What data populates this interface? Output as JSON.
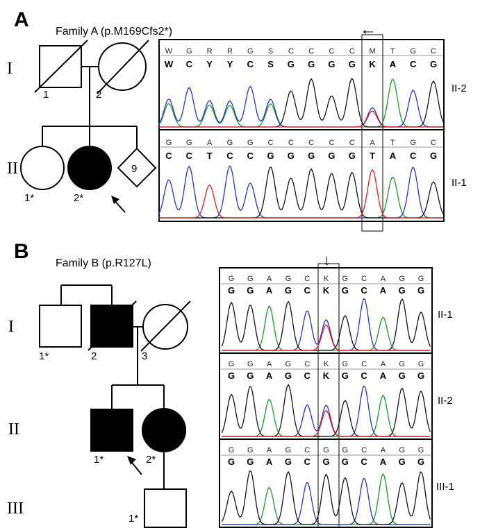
{
  "panels": {
    "A": {
      "letter": "A",
      "title": "Family A (p.M169Cfs2*)",
      "generations": [
        "I",
        "II"
      ],
      "individuals": {
        "I1": "1",
        "I2": "2",
        "II1": "1*",
        "II2": "2*",
        "diamond_count": "9"
      },
      "trace_labels": [
        "II-2",
        "II-1"
      ],
      "traces": [
        {
          "top": [
            "W",
            "G",
            "R",
            "R",
            "G",
            "S",
            "C",
            "C",
            "C",
            "C",
            "M",
            "T",
            "G",
            "C"
          ],
          "bottom": [
            "W",
            "C",
            "Y",
            "Y",
            "C",
            "S",
            "G",
            "G",
            "G",
            "G",
            "K",
            "A",
            "C",
            "G"
          ]
        },
        {
          "top": [
            "G",
            "G",
            "A",
            "G",
            "G",
            "C",
            "C",
            "C",
            "C",
            "C",
            "A",
            "T",
            "G",
            "C"
          ],
          "bottom": [
            "C",
            "C",
            "T",
            "C",
            "C",
            "G",
            "G",
            "G",
            "G",
            "G",
            "T",
            "A",
            "C",
            "G"
          ]
        }
      ],
      "arrow": "←"
    },
    "B": {
      "letter": "B",
      "title": "Family B (p.R127L)",
      "generations": [
        "I",
        "II",
        "III"
      ],
      "individuals": {
        "I1": "1*",
        "I2": "2",
        "I3": "3",
        "II1": "1*",
        "II2": "2*",
        "III1": "1*"
      },
      "trace_labels": [
        "II-1",
        "II-2",
        "III-1"
      ],
      "traces": [
        {
          "top": [
            "G",
            "G",
            "A",
            "G",
            "C",
            "K",
            "G",
            "C",
            "A",
            "G",
            "G"
          ],
          "bottom": [
            "G",
            "G",
            "A",
            "G",
            "C",
            "K",
            "G",
            "C",
            "A",
            "G",
            "G"
          ]
        },
        {
          "top": [
            "G",
            "G",
            "A",
            "G",
            "C",
            "K",
            "G",
            "C",
            "A",
            "G",
            "G"
          ],
          "bottom": [
            "G",
            "G",
            "A",
            "G",
            "C",
            "K",
            "G",
            "C",
            "A",
            "G",
            "G"
          ]
        },
        {
          "top": [
            "G",
            "G",
            "A",
            "G",
            "C",
            "G",
            "G",
            "C",
            "A",
            "G",
            "G"
          ],
          "bottom": [
            "G",
            "G",
            "A",
            "G",
            "C",
            "G",
            "G",
            "C",
            "A",
            "G",
            "G"
          ]
        }
      ],
      "arrow": "↓"
    }
  },
  "base_colors": {
    "A": "#1a9a2a",
    "C": "#2233cc",
    "G": "#111111",
    "T": "#e02020",
    "ambiguous": "#3aa0e8"
  }
}
